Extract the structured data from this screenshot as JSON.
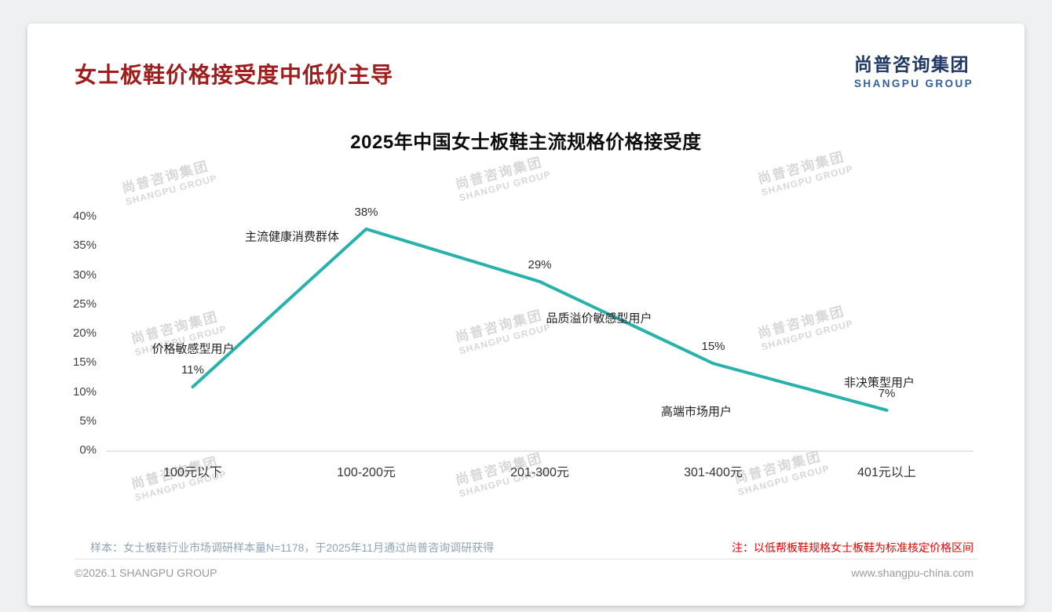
{
  "header": {
    "title": "女士板鞋价格接受度中低价主导",
    "logo_cn": "尚普咨询集团",
    "logo_en": "SHANGPU GROUP"
  },
  "watermark": {
    "cn": "尚普咨询集团",
    "en": "SHANGPU GROUP"
  },
  "chart_data": {
    "type": "line",
    "title": "2025年中国女士板鞋主流规格价格接受度",
    "categories": [
      "100元以下",
      "100-200元",
      "201-300元",
      "301-400元",
      "401元以上"
    ],
    "values": [
      11,
      38,
      29,
      15,
      7
    ],
    "value_labels": [
      "11%",
      "38%",
      "29%",
      "15%",
      "7%"
    ],
    "point_annotations": [
      "价格敏感型用户",
      "主流健康消费群体",
      "品质溢价敏感型用户",
      "高端市场用户",
      "非决策型用户"
    ],
    "xlabel": "",
    "ylabel": "",
    "ylim": [
      0,
      40
    ],
    "yticks": [
      "0%",
      "5%",
      "10%",
      "15%",
      "20%",
      "25%",
      "30%",
      "35%",
      "40%"
    ],
    "grid": false,
    "legend": "none",
    "line_color": "#29b2ac"
  },
  "colors": {
    "title_red": "#a01d1d",
    "logo_navy": "#203864",
    "logo_blue": "#2e5fa3",
    "line_teal": "#29b2ac",
    "note_red": "#e60000"
  },
  "footer": {
    "sample_note": "样本：女士板鞋行业市场调研样本量N=1178，于2025年11月通过尚普咨询调研获得",
    "red_note": "注：以低帮板鞋规格女士板鞋为标准核定价格区间",
    "copyright": "©2026.1 SHANGPU GROUP",
    "website": "www.shangpu-china.com"
  }
}
